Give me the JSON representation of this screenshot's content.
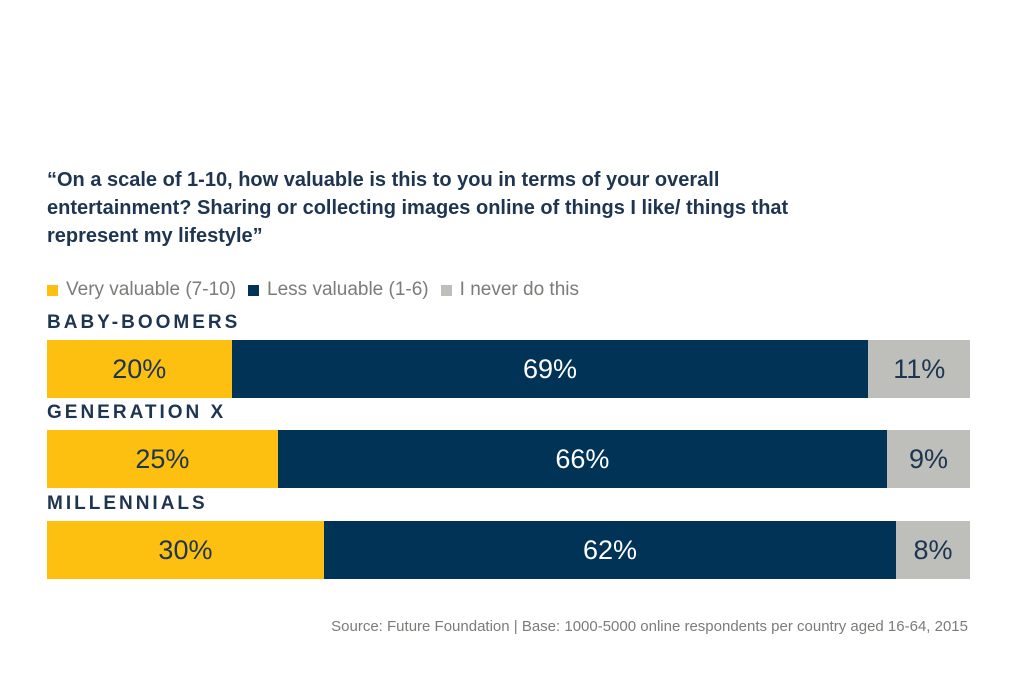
{
  "chart_data": {
    "type": "bar",
    "orientation": "horizontal-stacked",
    "title": "“On a scale of 1-10, how valuable is this to you in terms of your overall entertainment? Sharing or collecting images online of things I like/ things that represent my lifestyle”",
    "categories": [
      "BABY-BOOMERS",
      "GENERATION X",
      "MILLENNIALS"
    ],
    "series": [
      {
        "name": "Very valuable (7-10)",
        "color": "#FDC010",
        "text_color": "#1d3550",
        "values": [
          20,
          25,
          30
        ]
      },
      {
        "name": "Less valuable (1-6)",
        "color": "#003356",
        "text_color": "#ffffff",
        "values": [
          69,
          66,
          62
        ]
      },
      {
        "name": "I never do this",
        "color": "#BEBEBA",
        "text_color": "#1d3550",
        "values": [
          11,
          9,
          8
        ]
      }
    ],
    "unit": "%",
    "xlim": [
      0,
      100
    ],
    "legend_position": "top-left",
    "source": "Source: Future Foundation | Base: 1000-5000 online respondents per country aged 16-64, 2015"
  }
}
